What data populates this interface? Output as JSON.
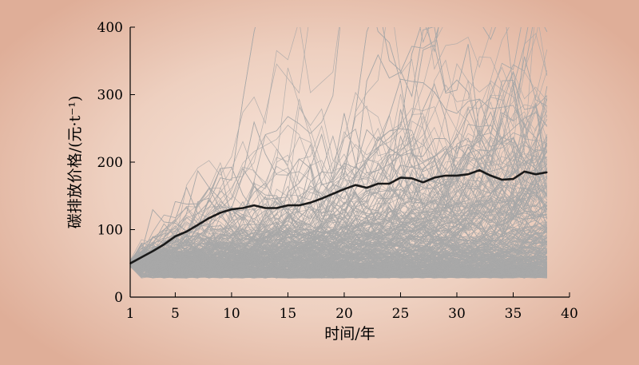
{
  "chart_data": {
    "type": "line",
    "title": "",
    "xlabel": "时间/年",
    "ylabel": "碳排放价格/(元·t⁻¹)",
    "xlim": [
      1,
      40
    ],
    "ylim": [
      0,
      400
    ],
    "x_ticks": [
      1,
      5,
      10,
      15,
      20,
      25,
      30,
      35,
      40
    ],
    "y_ticks": [
      0,
      100,
      200,
      300,
      400
    ],
    "grid": false,
    "legend": "none",
    "series": [
      {
        "role": "mean",
        "color": "#1a1a1a",
        "x": [
          1,
          2,
          3,
          4,
          5,
          6,
          7,
          8,
          9,
          10,
          11,
          12,
          13,
          14,
          15,
          16,
          17,
          18,
          19,
          20,
          21,
          22,
          23,
          24,
          25,
          26,
          27,
          28,
          29,
          30,
          31,
          32,
          33,
          34,
          35,
          36,
          37,
          38
        ],
        "values": [
          50,
          59,
          68,
          78,
          90,
          97,
          107,
          117,
          125,
          130,
          132,
          136,
          132,
          132,
          136,
          136,
          140,
          146,
          153,
          160,
          166,
          162,
          168,
          168,
          177,
          176,
          170,
          177,
          180,
          180,
          182,
          188,
          180,
          174,
          175,
          186,
          182,
          185
        ]
      }
    ],
    "simulated_paths": {
      "role": "simulated-paths",
      "color": "#a8a8a8",
      "count": 600,
      "x_range": [
        1,
        38
      ],
      "start_value": 50
    }
  }
}
